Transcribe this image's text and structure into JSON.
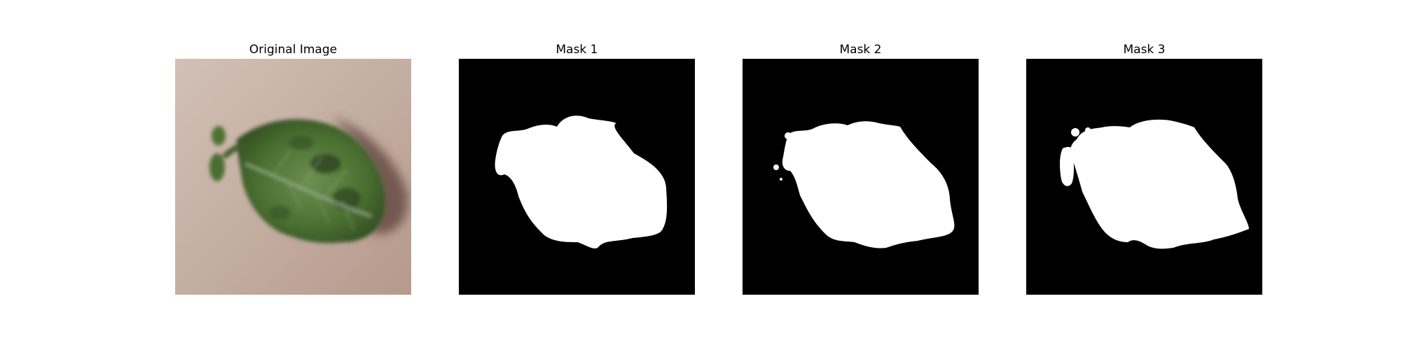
{
  "panels": [
    {
      "title": "Original Image"
    },
    {
      "title": "Mask 1"
    },
    {
      "title": "Mask 2"
    },
    {
      "title": "Mask 3"
    }
  ],
  "colors": {
    "background": "#ffffff",
    "mask_background": "#000000",
    "mask_foreground": "#ffffff",
    "leaf_green": "#4f7a35",
    "leaf_dark": "#2f4a22",
    "paper_tone": "#c6b0a4"
  }
}
